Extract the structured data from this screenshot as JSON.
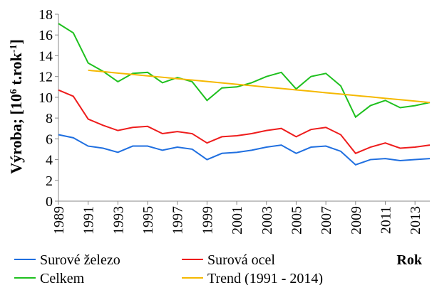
{
  "chart_data": {
    "type": "line",
    "y_label_parts": [
      "Výroba; [10",
      "6",
      " t.rok",
      "-1",
      "]"
    ],
    "x_label": "Rok",
    "x": [
      1989,
      1990,
      1991,
      1992,
      1993,
      1994,
      1995,
      1996,
      1997,
      1998,
      1999,
      2000,
      2001,
      2002,
      2003,
      2004,
      2005,
      2006,
      2007,
      2008,
      2009,
      2010,
      2011,
      2012,
      2013,
      2014
    ],
    "series": [
      {
        "name": "Surové železo",
        "color": "#1f6fe0",
        "values": [
          6.4,
          6.1,
          5.3,
          5.1,
          4.7,
          5.3,
          5.3,
          4.9,
          5.2,
          5.0,
          4.0,
          4.6,
          4.7,
          4.9,
          5.2,
          5.4,
          4.6,
          5.2,
          5.3,
          4.8,
          3.5,
          4.0,
          4.1,
          3.9,
          4.0,
          4.1
        ]
      },
      {
        "name": "Surová ocel",
        "color": "#ee1c1c",
        "values": [
          10.7,
          10.1,
          7.9,
          7.3,
          6.8,
          7.1,
          7.2,
          6.5,
          6.7,
          6.5,
          5.6,
          6.2,
          6.3,
          6.5,
          6.8,
          7.0,
          6.2,
          6.9,
          7.1,
          6.4,
          4.6,
          5.2,
          5.6,
          5.1,
          5.2,
          5.4
        ]
      },
      {
        "name": "Celkem",
        "color": "#1ec01e",
        "values": [
          17.1,
          16.2,
          13.3,
          12.5,
          11.5,
          12.3,
          12.4,
          11.4,
          11.9,
          11.5,
          9.7,
          10.9,
          11.0,
          11.4,
          12.0,
          12.4,
          10.8,
          12.0,
          12.3,
          11.1,
          8.1,
          9.2,
          9.7,
          9.0,
          9.2,
          9.5
        ]
      },
      {
        "name": "Trend (1991 - 2014)",
        "color": "#f5b800",
        "values": [
          null,
          null,
          12.6,
          12.47,
          12.33,
          12.2,
          12.06,
          11.93,
          11.79,
          11.66,
          11.52,
          11.39,
          11.25,
          11.12,
          10.98,
          10.85,
          10.71,
          10.58,
          10.44,
          10.31,
          10.17,
          10.04,
          9.9,
          9.77,
          9.63,
          9.5
        ]
      }
    ],
    "xlim": [
      1989,
      2014
    ],
    "xticks": [
      1989,
      1991,
      1993,
      1995,
      1997,
      1999,
      2001,
      2003,
      2005,
      2007,
      2009,
      2011,
      2013
    ],
    "ylim": [
      0,
      18
    ],
    "yticks": [
      0,
      2,
      4,
      6,
      8,
      10,
      12,
      14,
      16,
      18
    ],
    "grid": false
  }
}
